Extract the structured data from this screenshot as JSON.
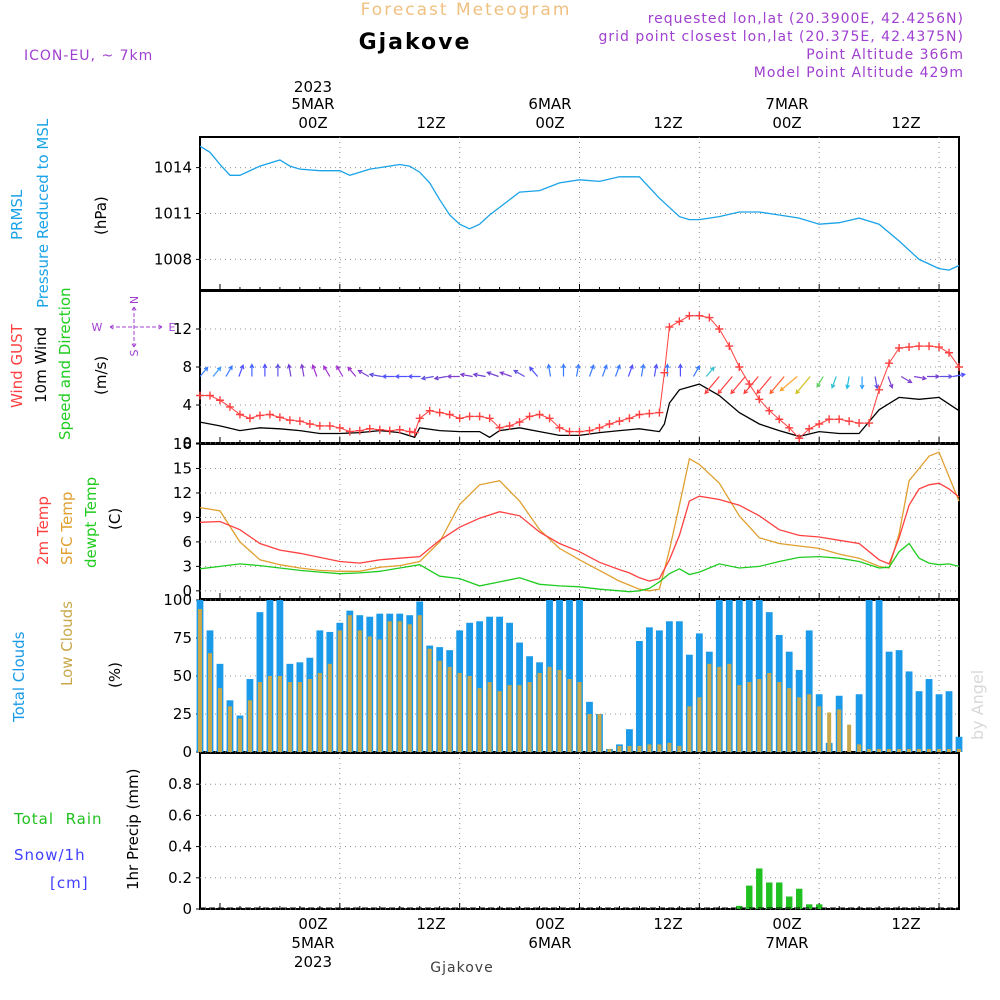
{
  "header": {
    "subtitle": "Forecast Meteogram",
    "station": "Gjakove",
    "model": "ICON-EU, ~ 7km",
    "requested": "requested lon,lat (20.3900E, 42.4256N)",
    "grid_point": "grid point closest lon,lat (20.375E, 42.4375N)",
    "point_altitude": "Point Altitude 366m",
    "model_altitude": "Model Point Altitude 429m"
  },
  "time_axis": {
    "top_year": "2023",
    "bottom_year": "2023",
    "hours": [
      "00Z",
      "12Z",
      "00Z",
      "12Z",
      "00Z",
      "12Z"
    ],
    "dates": [
      "5MAR",
      "6MAR",
      "7MAR"
    ],
    "footer": "Gjakove",
    "credit": "by Angel"
  },
  "panels": {
    "pressure": {
      "label1": "PRMSL",
      "label2": "Pressure Reduced to MSL",
      "unit": "(hPa)",
      "ticks": [
        "1008",
        "1011",
        "1014"
      ]
    },
    "wind": {
      "label1": "Wind GUST",
      "label2": "10m Wind",
      "label3": "Speed and Direction",
      "unit": "(m/s)",
      "ticks": [
        "0",
        "4",
        "8",
        "12"
      ],
      "compass": {
        "n": "N",
        "s": "S",
        "w": "W",
        "e": "E"
      }
    },
    "temp": {
      "label1": "2m Temp",
      "label2": "SFC Temp",
      "label3": "dewpt Temp",
      "unit": "(C)",
      "ticks": [
        "0",
        "3",
        "6",
        "9",
        "12",
        "15",
        "18"
      ]
    },
    "clouds": {
      "label1": "Total Clouds",
      "label2": "Low Clouds",
      "unit": "(%)",
      "ticks": [
        "0",
        "25",
        "50",
        "75",
        "100"
      ]
    },
    "precip": {
      "label1": "Total  Rain",
      "label2": "Snow/1h",
      "label3": "[cm]",
      "unit": "1hr Precip (mm)",
      "ticks": [
        "0",
        "0.2",
        "0.4",
        "0.6",
        "0.8"
      ]
    }
  },
  "colors": {
    "pressure": "#1aa3e8",
    "gust": "#ff4040",
    "wind": "#000000",
    "temp2m": "#ff4040",
    "sfc": "#e0a030",
    "dewpt": "#20cc20",
    "total_clouds": "#1a9ae8",
    "low_clouds": "#c8a84a",
    "rain": "#20c020",
    "snow": "#4040ff",
    "label_purple": "#a040d0"
  },
  "chart_data": {
    "type": "line",
    "x_unit": "hours since 2023-03-05 00Z",
    "x_range": [
      -14,
      62
    ],
    "pressure": {
      "ylim": [
        1006,
        1016
      ],
      "x": [
        -14,
        -13,
        -12,
        -11,
        -10,
        -8,
        -6,
        -5,
        -4,
        -2,
        0,
        1,
        2,
        3,
        4,
        6,
        7,
        8,
        9,
        10,
        11,
        12,
        13,
        14,
        15,
        16,
        18,
        20,
        22,
        24,
        26,
        28,
        30,
        32,
        34,
        35,
        36,
        38,
        40,
        42,
        44,
        46,
        48,
        50,
        52,
        54,
        56,
        58,
        60,
        61,
        62
      ],
      "y": [
        1015.4,
        1015.0,
        1014.2,
        1013.5,
        1013.5,
        1014.1,
        1014.5,
        1014.1,
        1013.9,
        1013.8,
        1013.8,
        1013.5,
        1013.7,
        1013.9,
        1014.0,
        1014.2,
        1014.1,
        1013.7,
        1013.0,
        1011.9,
        1010.9,
        1010.3,
        1010.0,
        1010.3,
        1010.9,
        1011.4,
        1012.4,
        1012.5,
        1013.0,
        1013.2,
        1013.1,
        1013.4,
        1013.4,
        1012.0,
        1010.8,
        1010.6,
        1010.6,
        1010.8,
        1011.1,
        1011.1,
        1010.9,
        1010.7,
        1010.3,
        1010.4,
        1010.7,
        1010.3,
        1009.2,
        1008.0,
        1007.4,
        1007.3,
        1007.6
      ]
    },
    "wind10m": {
      "ylim": [
        0,
        16
      ],
      "x": [
        -14,
        -12,
        -10,
        -8,
        -6,
        -4,
        -2,
        0,
        2,
        4,
        6,
        7.5,
        8,
        10,
        12,
        14,
        15,
        16,
        18,
        20,
        22,
        24,
        26,
        28,
        30,
        32,
        32.5,
        33,
        34,
        36,
        38,
        40,
        42,
        44,
        46,
        48,
        50,
        52,
        54,
        56,
        58,
        60,
        62
      ],
      "y": [
        2.2,
        1.8,
        1.3,
        1.6,
        1.5,
        1.3,
        1.0,
        1.0,
        1.1,
        1.3,
        1.1,
        0.6,
        1.6,
        1.3,
        1.2,
        1.2,
        0.6,
        1.3,
        1.6,
        1.2,
        0.8,
        0.8,
        1.1,
        1.3,
        1.5,
        1.2,
        2.0,
        4.2,
        5.6,
        6.2,
        5.0,
        3.2,
        2.0,
        1.3,
        0.7,
        1.2,
        1.0,
        1.0,
        3.5,
        4.8,
        4.6,
        4.8,
        3.4
      ]
    },
    "gust": {
      "ylim": [
        0,
        16
      ],
      "x": [
        -14,
        -13,
        -12,
        -11,
        -10,
        -9,
        -8,
        -7,
        -6,
        -5,
        -4,
        -3,
        -2,
        -1,
        0,
        1,
        2,
        3,
        4,
        5,
        6,
        7,
        7.5,
        8,
        9,
        10,
        11,
        12,
        13,
        14,
        15,
        16,
        17,
        18,
        19,
        20,
        21,
        22,
        23,
        24,
        25,
        26,
        27,
        28,
        29,
        30,
        31,
        32,
        32.5,
        33,
        34,
        35,
        36,
        37,
        38,
        39,
        40,
        41,
        42,
        43,
        44,
        45,
        46,
        47,
        48,
        49,
        50,
        51,
        52,
        53,
        54,
        55,
        56,
        57,
        58,
        59,
        60,
        61,
        62
      ],
      "y": [
        5.0,
        5.0,
        4.5,
        3.8,
        3.0,
        2.6,
        2.9,
        3.0,
        2.7,
        2.4,
        2.3,
        2.0,
        1.8,
        1.8,
        1.6,
        1.2,
        1.3,
        1.5,
        1.4,
        1.3,
        1.4,
        1.2,
        1.1,
        2.6,
        3.4,
        3.2,
        3.0,
        2.6,
        2.8,
        2.8,
        2.6,
        1.6,
        1.8,
        2.2,
        2.8,
        3.0,
        2.6,
        1.6,
        1.2,
        1.2,
        1.3,
        1.6,
        2.0,
        2.3,
        2.6,
        3.0,
        3.1,
        3.2,
        7.4,
        12.2,
        12.8,
        13.4,
        13.4,
        13.2,
        12.0,
        10.2,
        8.0,
        6.2,
        4.6,
        3.4,
        2.5,
        1.6,
        0.5,
        1.5,
        2.0,
        2.5,
        2.5,
        2.3,
        2.1,
        2.1,
        5.6,
        8.4,
        10.0,
        10.1,
        10.2,
        10.2,
        10.1,
        9.5,
        8.0
      ]
    },
    "wind_barbs": {
      "x_start": -14,
      "x_end": 62,
      "step": 1.3,
      "ymark": 7,
      "directions_deg": [
        220,
        220,
        210,
        200,
        180,
        180,
        180,
        170,
        170,
        160,
        150,
        150,
        140,
        120,
        100,
        90,
        90,
        90,
        80,
        80,
        90,
        100,
        100,
        110,
        110,
        120,
        140,
        170,
        180,
        190,
        200,
        200,
        200,
        200,
        190,
        190,
        180,
        180,
        210,
        220,
        40,
        40,
        40,
        40,
        40,
        40,
        50,
        40,
        30,
        20,
        10,
        0,
        350,
        340,
        300,
        280,
        270,
        270,
        260,
        250,
        230,
        210,
        200,
        210,
        30,
        40,
        40,
        40,
        40,
        40
      ],
      "speeds_ms": [
        6.8,
        6.8,
        7.0,
        7.0,
        7.0,
        7.0,
        7.0,
        7.0,
        7.0,
        7.0,
        7.0,
        7.0,
        7.0,
        7.0,
        7.0,
        7.0,
        7.0,
        7.0,
        7.0,
        7.0,
        7.0,
        7.0,
        7.0,
        7.0,
        7.0,
        7.0,
        7.0,
        7.0,
        7.0,
        7.0,
        7.0,
        7.0,
        7.0,
        7.0,
        7.0,
        7.0,
        7.0,
        7.0,
        7.0,
        7.0,
        13,
        13,
        13,
        13,
        13,
        13,
        12,
        11,
        9,
        8,
        7,
        7,
        7,
        7,
        7,
        7,
        7,
        7,
        7,
        7,
        7,
        7,
        7,
        7,
        12,
        12,
        12,
        12,
        12,
        12
      ],
      "colors": [
        "#3a7aff",
        "#3a9aff",
        "#3a7aff",
        "#5050ff",
        "#4060ff",
        "#5050ff",
        "#6050e0",
        "#7040d0",
        "#8040d0",
        "#a030d0",
        "#a030d0",
        "#a030d0",
        "#a030d0",
        "#8040d0",
        "#6050e0",
        "#5050ff",
        "#5050ff",
        "#5050ff",
        "#6050e0",
        "#7040d0",
        "#8040d0",
        "#8040d0",
        "#7040d0",
        "#7040d0",
        "#8040d0",
        "#6050e0",
        "#5050ff",
        "#3a7aff",
        "#3a7aff",
        "#3a7aff",
        "#3a7aff",
        "#3a7aff",
        "#3a7aff",
        "#5050ff",
        "#3a7aff",
        "#5050ff",
        "#3a7aff",
        "#5050ff",
        "#3a7aff",
        "#30c0d0",
        "#ff4040",
        "#ff4040",
        "#ff4040",
        "#ff4040",
        "#ff4040",
        "#ff6030",
        "#ffa030",
        "#d0c020",
        "#60d060",
        "#30c0d0",
        "#20c0e0",
        "#30a0ff",
        "#6050e0",
        "#8040d0",
        "#8040d0",
        "#8040d0",
        "#7040d0",
        "#6050e0",
        "#5050ff",
        "#3a7aff",
        "#3a7aff",
        "#5050ff",
        "#3a7aff",
        "#3a7aff",
        "#30c0d0",
        "#e0b020",
        "#e0b020",
        "#a0c020",
        "#a0c020",
        "#80d040"
      ]
    },
    "temp2m": {
      "ylim": [
        -1,
        18
      ],
      "x": [
        -14,
        -12,
        -10,
        -8,
        -6,
        -4,
        -2,
        0,
        2,
        4,
        6,
        8,
        10,
        12,
        14,
        16,
        18,
        20,
        22,
        24,
        26,
        28,
        29,
        30,
        31,
        32,
        33,
        34,
        35,
        36,
        38,
        40,
        42,
        44,
        46,
        48,
        50,
        52,
        54,
        55,
        56,
        57,
        58,
        59,
        60,
        61,
        62
      ],
      "y": [
        8.4,
        8.5,
        7.5,
        5.8,
        5.0,
        4.6,
        4.1,
        3.6,
        3.4,
        3.8,
        4.0,
        4.2,
        6.2,
        7.8,
        8.9,
        9.7,
        9.2,
        7.2,
        5.8,
        4.8,
        3.5,
        2.6,
        2.2,
        1.6,
        1.2,
        1.5,
        3.8,
        6.8,
        11.0,
        11.6,
        11.2,
        10.5,
        9.2,
        7.5,
        6.8,
        6.6,
        6.2,
        5.8,
        3.8,
        3.3,
        6.5,
        10.5,
        12.5,
        13.0,
        13.2,
        12.5,
        11.5
      ]
    },
    "sfc_temp": {
      "ylim": [
        -1,
        18
      ],
      "x": [
        -14,
        -12,
        -10,
        -8,
        -6,
        -4,
        -2,
        0,
        2,
        4,
        6,
        8,
        10,
        12,
        14,
        16,
        18,
        20,
        22,
        24,
        26,
        28,
        29,
        30,
        31,
        32,
        33,
        34,
        35,
        36,
        38,
        40,
        42,
        44,
        46,
        48,
        50,
        52,
        54,
        55,
        56,
        57,
        58,
        59,
        60,
        61,
        62
      ],
      "y": [
        10.2,
        9.8,
        6.0,
        3.8,
        3.2,
        2.8,
        2.5,
        2.4,
        2.4,
        2.9,
        3.1,
        3.6,
        6.0,
        10.6,
        13.0,
        13.5,
        11.0,
        7.5,
        5.2,
        3.8,
        2.5,
        1.2,
        0.7,
        0.2,
        0.0,
        0.2,
        5.0,
        10.5,
        16.2,
        15.5,
        13.2,
        9.2,
        6.5,
        5.8,
        5.5,
        5.2,
        4.5,
        4.0,
        3.0,
        2.8,
        7.0,
        13.5,
        15.0,
        16.5,
        17.0,
        14.0,
        11.0
      ]
    },
    "dewpt": {
      "ylim": [
        -1,
        18
      ],
      "x": [
        -14,
        -12,
        -10,
        -8,
        -6,
        -4,
        -2,
        0,
        2,
        4,
        6,
        8,
        10,
        12,
        14,
        16,
        18,
        20,
        22,
        24,
        26,
        28,
        29,
        30,
        31,
        32,
        33,
        34,
        35,
        36,
        38,
        40,
        42,
        44,
        46,
        48,
        50,
        52,
        54,
        55,
        56,
        57,
        58,
        59,
        60,
        61,
        62
      ],
      "y": [
        2.7,
        3.0,
        3.3,
        3.1,
        2.8,
        2.5,
        2.3,
        2.1,
        2.2,
        2.4,
        2.8,
        3.2,
        1.8,
        1.5,
        0.6,
        1.1,
        1.6,
        0.8,
        0.6,
        0.5,
        0.2,
        0.0,
        -0.1,
        0.0,
        0.3,
        1.1,
        2.1,
        2.7,
        2.0,
        2.3,
        3.3,
        2.8,
        3.0,
        3.6,
        4.1,
        4.2,
        4.0,
        3.6,
        2.8,
        2.9,
        4.8,
        5.8,
        4.0,
        3.4,
        3.2,
        3.3,
        3.0
      ]
    },
    "clouds": {
      "ylim": [
        0,
        100
      ],
      "x": [
        -14,
        -13,
        -12,
        -11,
        -10,
        -9,
        -8,
        -7,
        -6,
        -5,
        -4,
        -3,
        -2,
        -1,
        0,
        1,
        2,
        3,
        4,
        5,
        6,
        7,
        8,
        9,
        10,
        11,
        12,
        13,
        14,
        15,
        16,
        17,
        18,
        19,
        20,
        21,
        22,
        23,
        24,
        25,
        26,
        27,
        28,
        29,
        30,
        31,
        32,
        33,
        34,
        35,
        36,
        37,
        38,
        39,
        40,
        41,
        42,
        43,
        44,
        45,
        46,
        47,
        48,
        49,
        50,
        51,
        52,
        53,
        54,
        55,
        56,
        57,
        58,
        59,
        60,
        61,
        62
      ],
      "total": [
        100,
        80,
        58,
        34,
        24,
        48,
        92,
        100,
        100,
        58,
        59,
        62,
        80,
        79,
        85,
        93,
        90,
        89,
        91,
        91,
        91,
        90,
        99,
        70,
        69,
        67,
        80,
        85,
        86,
        89,
        89,
        85,
        72,
        63,
        59,
        100,
        100,
        100,
        100,
        33,
        25,
        2,
        5,
        15,
        73,
        82,
        80,
        86,
        86,
        64,
        78,
        66,
        100,
        100,
        100,
        100,
        100,
        92,
        77,
        66,
        54,
        80,
        38,
        6,
        37,
        0,
        38,
        100,
        100,
        66,
        67,
        53,
        40,
        48,
        38,
        40,
        10
      ],
      "low": [
        94,
        65,
        42,
        30,
        22,
        34,
        46,
        50,
        50,
        46,
        46,
        48,
        52,
        58,
        80,
        90,
        80,
        76,
        74,
        86,
        86,
        84,
        90,
        68,
        60,
        56,
        52,
        50,
        42,
        46,
        40,
        44,
        44,
        46,
        52,
        56,
        54,
        48,
        46,
        25,
        25,
        2,
        4,
        4,
        4,
        5,
        5,
        6,
        4,
        30,
        36,
        58,
        56,
        58,
        44,
        46,
        48,
        52,
        46,
        42,
        36,
        38,
        30,
        26,
        28,
        18,
        5,
        2,
        2,
        2,
        2,
        2,
        2,
        2,
        2,
        2,
        2
      ]
    },
    "precip": {
      "ylim": [
        0,
        1.0
      ],
      "x": [
        40,
        41,
        42,
        43,
        44,
        45,
        46,
        47,
        48
      ],
      "rain": [
        0.02,
        0.15,
        0.26,
        0.17,
        0.17,
        0.08,
        0.13,
        0.03,
        0.03
      ],
      "snow": [
        0,
        0,
        0,
        0,
        0,
        0,
        0,
        0,
        0
      ]
    }
  }
}
